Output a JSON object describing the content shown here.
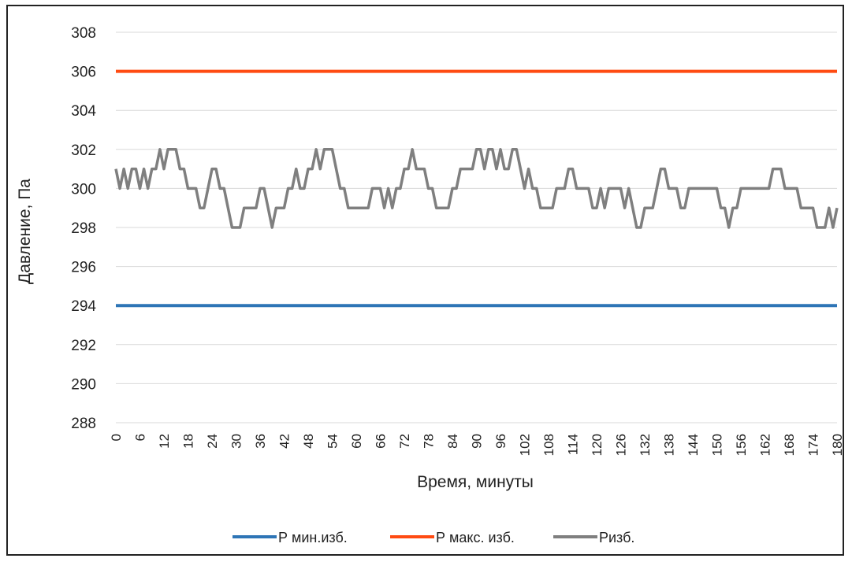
{
  "chart_data": {
    "type": "line",
    "title": "",
    "xlabel": "Время, минуты",
    "ylabel": "Давление, Па",
    "xlim": [
      0,
      180
    ],
    "ylim": [
      288,
      308
    ],
    "y_ticks": [
      288,
      290,
      292,
      294,
      296,
      298,
      300,
      302,
      304,
      306,
      308
    ],
    "x_ticks": [
      0,
      3,
      6,
      9,
      12,
      15,
      18,
      21,
      24,
      27,
      30,
      33,
      36,
      39,
      42,
      45,
      48,
      51,
      54,
      57,
      60,
      63,
      66,
      69,
      72,
      75,
      78,
      81,
      84,
      87,
      90,
      93,
      96,
      99,
      102,
      105,
      108,
      111,
      114,
      117,
      120,
      123,
      126,
      129,
      132,
      135,
      138,
      141,
      144,
      147,
      150,
      153,
      156,
      159,
      162,
      165,
      168,
      171,
      174,
      177,
      180
    ],
    "x_tick_labels": [
      "0",
      "",
      "6",
      "",
      "12",
      "",
      "18",
      "",
      "24",
      "",
      "30",
      "",
      "36",
      "",
      "42",
      "",
      "48",
      "",
      "54",
      "",
      "60",
      "",
      "66",
      "",
      "72",
      "",
      "78",
      "",
      "84",
      "",
      "90",
      "",
      "96",
      "",
      "102",
      "",
      "108",
      "",
      "114",
      "",
      "120",
      "",
      "126",
      "",
      "132",
      "",
      "138",
      "",
      "144",
      "",
      "150",
      "",
      "156",
      "",
      "162",
      "",
      "168",
      "",
      "174",
      "",
      "180"
    ],
    "grid": true,
    "legend_position": "bottom",
    "series": [
      {
        "name": "Р мин.изб.",
        "color": "#2E75B6",
        "x": [
          0,
          180
        ],
        "values": [
          294,
          294
        ]
      },
      {
        "name": "Р макс. изб.",
        "color": "#FF4B12",
        "x": [
          0,
          180
        ],
        "values": [
          306,
          306
        ]
      },
      {
        "name": "Ризб.",
        "color": "#7F7F7F",
        "x": [
          0,
          1,
          2,
          3,
          4,
          5,
          6,
          7,
          8,
          9,
          10,
          11,
          12,
          13,
          14,
          15,
          16,
          17,
          18,
          19,
          20,
          21,
          22,
          23,
          24,
          25,
          26,
          27,
          28,
          29,
          30,
          31,
          32,
          33,
          34,
          35,
          36,
          37,
          38,
          39,
          40,
          41,
          42,
          43,
          44,
          45,
          46,
          47,
          48,
          49,
          50,
          51,
          52,
          53,
          54,
          55,
          56,
          57,
          58,
          59,
          60,
          61,
          62,
          63,
          64,
          65,
          66,
          67,
          68,
          69,
          70,
          71,
          72,
          73,
          74,
          75,
          76,
          77,
          78,
          79,
          80,
          81,
          82,
          83,
          84,
          85,
          86,
          87,
          88,
          89,
          90,
          91,
          92,
          93,
          94,
          95,
          96,
          97,
          98,
          99,
          100,
          101,
          102,
          103,
          104,
          105,
          106,
          107,
          108,
          109,
          110,
          111,
          112,
          113,
          114,
          115,
          116,
          117,
          118,
          119,
          120,
          121,
          122,
          123,
          124,
          125,
          126,
          127,
          128,
          129,
          130,
          131,
          132,
          133,
          134,
          135,
          136,
          137,
          138,
          139,
          140,
          141,
          142,
          143,
          144,
          145,
          146,
          147,
          148,
          149,
          150,
          151,
          152,
          153,
          154,
          155,
          156,
          157,
          158,
          159,
          160,
          161,
          162,
          163,
          164,
          165,
          166,
          167,
          168,
          169,
          170,
          171,
          172,
          173,
          174,
          175,
          176,
          177,
          178,
          179,
          180
        ],
        "values": [
          301,
          300,
          301,
          300,
          301,
          301,
          300,
          301,
          300,
          301,
          301,
          302,
          301,
          302,
          302,
          302,
          301,
          301,
          300,
          300,
          300,
          299,
          299,
          300,
          301,
          301,
          300,
          300,
          299,
          298,
          298,
          298,
          299,
          299,
          299,
          299,
          300,
          300,
          299,
          298,
          299,
          299,
          299,
          300,
          300,
          301,
          300,
          300,
          301,
          301,
          302,
          301,
          302,
          302,
          302,
          301,
          300,
          300,
          299,
          299,
          299,
          299,
          299,
          299,
          300,
          300,
          300,
          299,
          300,
          299,
          300,
          300,
          301,
          301,
          302,
          301,
          301,
          301,
          300,
          300,
          299,
          299,
          299,
          299,
          300,
          300,
          301,
          301,
          301,
          301,
          302,
          302,
          301,
          302,
          302,
          301,
          302,
          301,
          301,
          302,
          302,
          301,
          300,
          301,
          300,
          300,
          299,
          299,
          299,
          299,
          300,
          300,
          300,
          301,
          301,
          300,
          300,
          300,
          300,
          299,
          299,
          300,
          299,
          300,
          300,
          300,
          300,
          299,
          300,
          299,
          298,
          298,
          299,
          299,
          299,
          300,
          301,
          301,
          300,
          300,
          300,
          299,
          299,
          300,
          300,
          300,
          300,
          300,
          300,
          300,
          300,
          299,
          299,
          298,
          299,
          299,
          300,
          300,
          300,
          300,
          300,
          300,
          300,
          300,
          301,
          301,
          301,
          300,
          300,
          300,
          300,
          299,
          299,
          299,
          299,
          298,
          298,
          298,
          299,
          298,
          299
        ]
      }
    ]
  }
}
